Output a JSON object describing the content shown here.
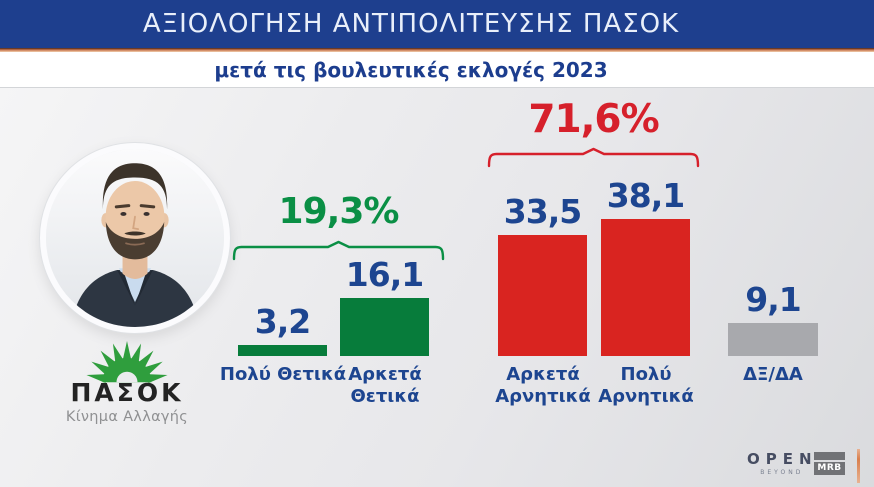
{
  "header": {
    "title": "ΑΞΙΟΛΟΓΗΣΗ ΑΝΤΙΠΟΛΙΤΕΥΣΗΣ ΠΑΣΟΚ",
    "subtitle": "μετά τις βουλευτικές εκλογές 2023"
  },
  "party": {
    "name": "ΠΑΣΟΚ",
    "movement": "Κίνημα Αλλαγής",
    "logo_icon": "pasok-sun-logo",
    "photo_icon": "leader-portrait-photo"
  },
  "chart_data": {
    "type": "bar",
    "title": "ΑΞΙΟΛΟΓΗΣΗ ΑΝΤΙΠΟΛΙΤΕΥΣΗΣ ΠΑΣΟΚ",
    "subtitle": "μετά τις βουλευτικές εκλογές 2023",
    "categories": [
      "Πολύ Θετικά",
      "Αρκετά Θετικά",
      "Αρκετά Αρνητικά",
      "Πολύ Αρνητικά",
      "ΔΞ/ΔΑ"
    ],
    "values": [
      3.2,
      16.1,
      33.5,
      38.1,
      9.1
    ],
    "value_labels": [
      "3,2",
      "16,1",
      "33,5",
      "38,1",
      "9,1"
    ],
    "bar_colors": [
      "#077c3b",
      "#077c3b",
      "#d92420",
      "#d92420",
      "#a8a9ad"
    ],
    "value_label_color": "#1d4590",
    "category_label_color": "#1d4590",
    "groups": [
      {
        "label": "19,3%",
        "value": 19.3,
        "color": "#0a8f45",
        "bar_indexes": [
          0,
          1
        ]
      },
      {
        "label": "71,6%",
        "value": 71.6,
        "color": "#d6202b",
        "bar_indexes": [
          2,
          3
        ]
      }
    ],
    "ylim": [
      0,
      40
    ],
    "grid": false,
    "legend": "none"
  },
  "footer": {
    "channel": "OPEN",
    "channel_tagline": "BEYOND",
    "pollster": "MRB"
  },
  "colors": {
    "title_bar": "#1e3f8e",
    "accent_line": "#c4714a",
    "subtitle_text": "#1c3d8e",
    "positive_green": "#077c3b",
    "negative_red": "#d92420",
    "neutral_gray": "#a8a9ad",
    "label_blue": "#1d4590",
    "logo_green": "#2f9e3d"
  }
}
